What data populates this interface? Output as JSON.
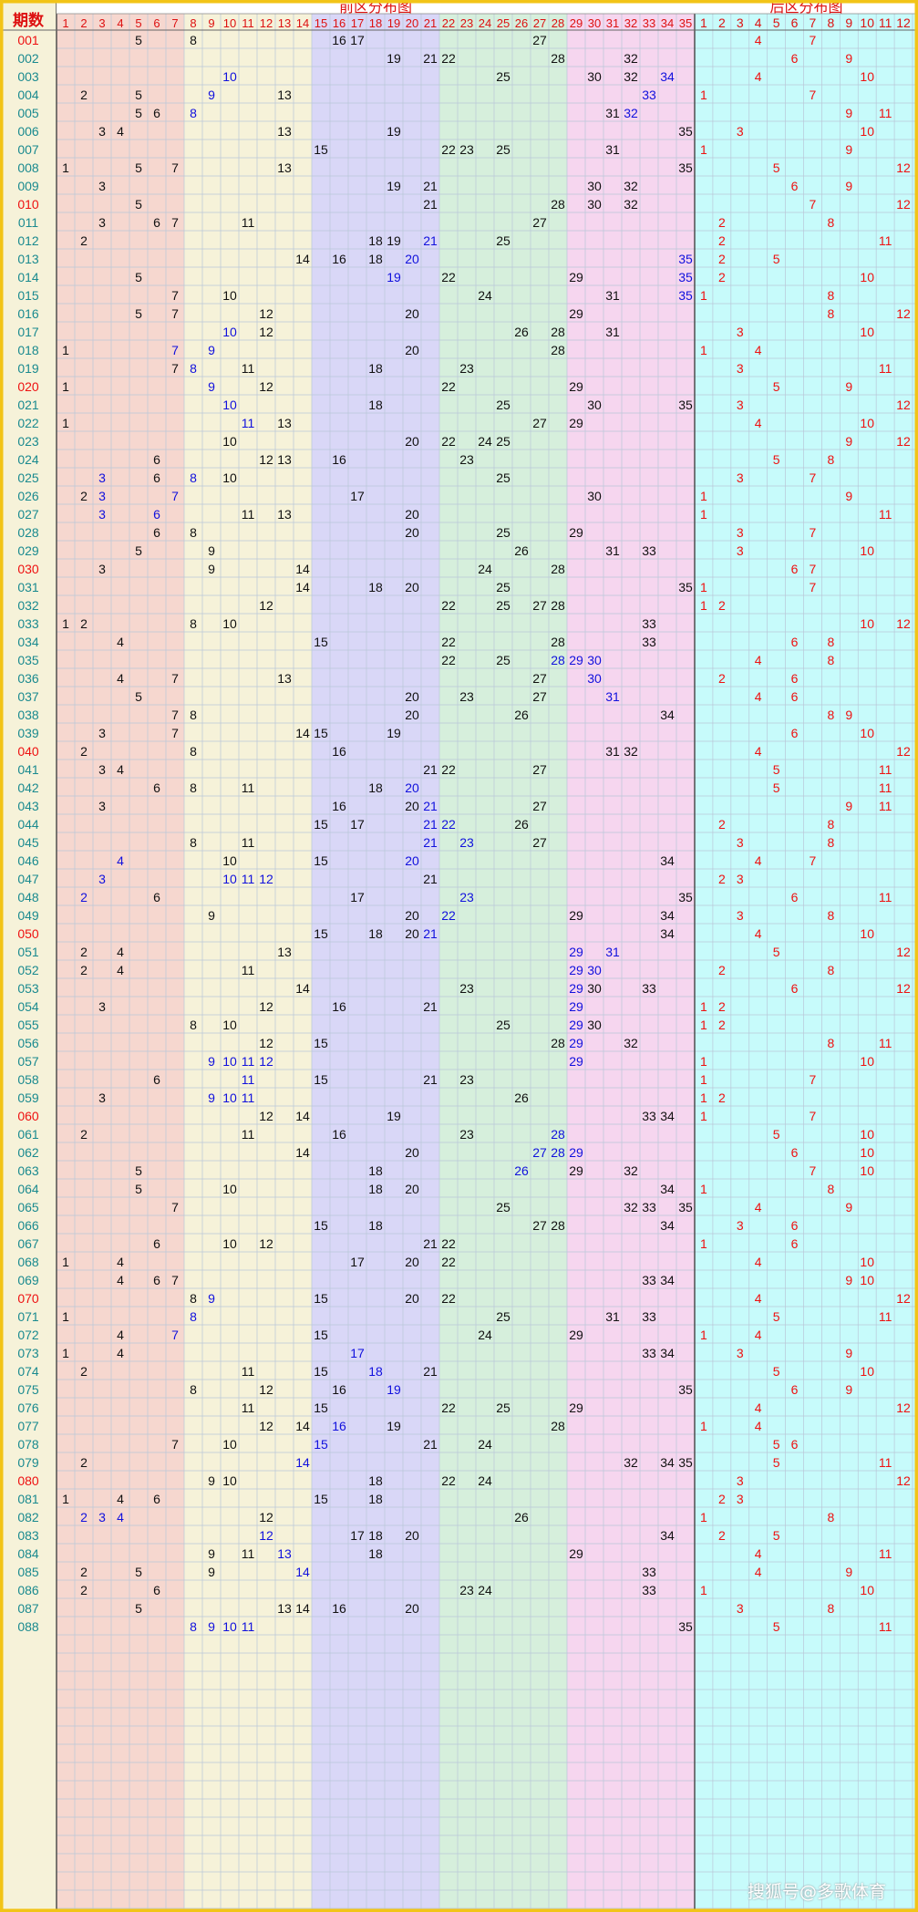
{
  "header": {
    "period_label": "期数",
    "front_title": "前区分布图",
    "back_title": "后区分布图"
  },
  "front_cols": [
    "1",
    "2",
    "3",
    "4",
    "5",
    "6",
    "7",
    "8",
    "9",
    "10",
    "11",
    "12",
    "13",
    "14",
    "15",
    "16",
    "17",
    "18",
    "19",
    "20",
    "21",
    "22",
    "23",
    "24",
    "25",
    "26",
    "27",
    "28",
    "29",
    "30",
    "31",
    "32",
    "33",
    "34",
    "35"
  ],
  "back_cols": [
    "1",
    "2",
    "3",
    "4",
    "5",
    "6",
    "7",
    "8",
    "9",
    "10",
    "11",
    "12"
  ],
  "colors": {
    "zone1": "#f6d7cf",
    "zone2": "#f6f2d9",
    "zone3": "#d9d7f7",
    "zone4": "#d6efdc",
    "zone5": "#f6d6ef",
    "back": "#c7fbfb",
    "period_bg": "#f6f2d9",
    "front_num": "#111111",
    "repeat_num": "#1111dd",
    "back_num": "#ee1111",
    "period_red": "#ee1111",
    "period_teal": "#1a8a8f",
    "title_red": "#dd1111",
    "border": "#f2c417"
  },
  "rows": [
    {
      "p": "001",
      "f": [
        5,
        8,
        16,
        17,
        27
      ],
      "b": [
        4,
        7
      ],
      "blue": []
    },
    {
      "p": "002",
      "f": [
        19,
        21,
        22,
        28,
        32
      ],
      "b": [
        6,
        9
      ],
      "blue": []
    },
    {
      "p": "003",
      "f": [
        10,
        25,
        30,
        32,
        34
      ],
      "b": [
        4,
        10
      ],
      "blue": [
        10,
        34
      ]
    },
    {
      "p": "004",
      "f": [
        2,
        5,
        9,
        13,
        33
      ],
      "b": [
        1,
        7
      ],
      "blue": [
        9,
        33
      ]
    },
    {
      "p": "005",
      "f": [
        5,
        6,
        8,
        31,
        32
      ],
      "b": [
        9,
        11
      ],
      "blue": [
        8,
        32
      ]
    },
    {
      "p": "006",
      "f": [
        3,
        4,
        13,
        19,
        35
      ],
      "b": [
        3,
        10
      ],
      "blue": []
    },
    {
      "p": "007",
      "f": [
        15,
        22,
        23,
        25,
        31
      ],
      "b": [
        1,
        9
      ],
      "blue": []
    },
    {
      "p": "008",
      "f": [
        1,
        5,
        7,
        13,
        35
      ],
      "b": [
        5,
        12
      ],
      "blue": []
    },
    {
      "p": "009",
      "f": [
        3,
        19,
        21,
        30,
        32
      ],
      "b": [
        6,
        9
      ],
      "blue": []
    },
    {
      "p": "010",
      "f": [
        5,
        21,
        28,
        30,
        32
      ],
      "b": [
        7,
        12
      ],
      "blue": []
    },
    {
      "p": "011",
      "f": [
        3,
        6,
        7,
        11,
        27
      ],
      "b": [
        2,
        8
      ],
      "blue": []
    },
    {
      "p": "012",
      "f": [
        2,
        18,
        19,
        21,
        25
      ],
      "b": [
        2,
        11
      ],
      "blue": [
        21
      ]
    },
    {
      "p": "013",
      "f": [
        14,
        16,
        18,
        20,
        35
      ],
      "b": [
        2,
        5
      ],
      "blue": [
        20,
        35
      ]
    },
    {
      "p": "014",
      "f": [
        5,
        19,
        22,
        29,
        35
      ],
      "b": [
        2,
        10
      ],
      "blue": [
        19,
        35
      ]
    },
    {
      "p": "015",
      "f": [
        7,
        10,
        24,
        31,
        35
      ],
      "b": [
        1,
        8
      ],
      "blue": [
        35
      ]
    },
    {
      "p": "016",
      "f": [
        5,
        7,
        12,
        20,
        29
      ],
      "b": [
        8,
        12
      ],
      "blue": []
    },
    {
      "p": "017",
      "f": [
        10,
        12,
        26,
        28,
        31
      ],
      "b": [
        3,
        10
      ],
      "blue": [
        10
      ]
    },
    {
      "p": "018",
      "f": [
        1,
        7,
        9,
        20,
        28
      ],
      "b": [
        1,
        4
      ],
      "blue": [
        7,
        9
      ]
    },
    {
      "p": "019",
      "f": [
        7,
        8,
        11,
        18,
        23
      ],
      "b": [
        3,
        11
      ],
      "blue": [
        8
      ]
    },
    {
      "p": "020",
      "f": [
        1,
        9,
        12,
        22,
        29
      ],
      "b": [
        5,
        9
      ],
      "blue": [
        9
      ]
    },
    {
      "p": "021",
      "f": [
        10,
        18,
        25,
        30,
        35
      ],
      "b": [
        3,
        12
      ],
      "blue": [
        10
      ]
    },
    {
      "p": "022",
      "f": [
        1,
        11,
        13,
        27,
        29
      ],
      "b": [
        4,
        10
      ],
      "blue": [
        11
      ]
    },
    {
      "p": "023",
      "f": [
        10,
        20,
        22,
        24,
        25
      ],
      "b": [
        9,
        12
      ],
      "blue": []
    },
    {
      "p": "024",
      "f": [
        6,
        12,
        13,
        16,
        23
      ],
      "b": [
        5,
        8
      ],
      "blue": []
    },
    {
      "p": "025",
      "f": [
        3,
        6,
        8,
        10,
        25
      ],
      "b": [
        3,
        7
      ],
      "blue": [
        3,
        8
      ]
    },
    {
      "p": "026",
      "f": [
        2,
        3,
        7,
        17,
        30
      ],
      "b": [
        1,
        9
      ],
      "blue": [
        3,
        7
      ]
    },
    {
      "p": "027",
      "f": [
        3,
        6,
        11,
        13,
        20
      ],
      "b": [
        1,
        11
      ],
      "blue": [
        3,
        6
      ]
    },
    {
      "p": "028",
      "f": [
        6,
        8,
        20,
        25,
        29
      ],
      "b": [
        3,
        7
      ],
      "blue": []
    },
    {
      "p": "029",
      "f": [
        5,
        9,
        26,
        31,
        33
      ],
      "b": [
        3,
        10
      ],
      "blue": []
    },
    {
      "p": "030",
      "f": [
        3,
        9,
        14,
        24,
        28
      ],
      "b": [
        6,
        7
      ],
      "blue": []
    },
    {
      "p": "031",
      "f": [
        14,
        18,
        20,
        25,
        35
      ],
      "b": [
        1,
        7
      ],
      "blue": []
    },
    {
      "p": "032",
      "f": [
        12,
        22,
        25,
        27,
        28
      ],
      "b": [
        1,
        2
      ],
      "blue": []
    },
    {
      "p": "033",
      "f": [
        1,
        2,
        8,
        10,
        33
      ],
      "b": [
        10,
        12
      ],
      "blue": []
    },
    {
      "p": "034",
      "f": [
        4,
        15,
        22,
        28,
        33
      ],
      "b": [
        6,
        8
      ],
      "blue": []
    },
    {
      "p": "035",
      "f": [
        22,
        25,
        28,
        29,
        30
      ],
      "b": [
        4,
        8
      ],
      "blue": [
        28,
        29,
        30
      ]
    },
    {
      "p": "036",
      "f": [
        4,
        7,
        13,
        27,
        30
      ],
      "b": [
        2,
        6
      ],
      "blue": [
        30
      ]
    },
    {
      "p": "037",
      "f": [
        5,
        20,
        23,
        27,
        31
      ],
      "b": [
        4,
        6
      ],
      "blue": [
        31
      ]
    },
    {
      "p": "038",
      "f": [
        7,
        8,
        20,
        26,
        34
      ],
      "b": [
        8,
        9
      ],
      "blue": []
    },
    {
      "p": "039",
      "f": [
        3,
        7,
        14,
        15,
        19
      ],
      "b": [
        6,
        10
      ],
      "blue": []
    },
    {
      "p": "040",
      "f": [
        2,
        8,
        16,
        31,
        32
      ],
      "b": [
        4,
        12
      ],
      "blue": []
    },
    {
      "p": "041",
      "f": [
        3,
        4,
        21,
        22,
        27
      ],
      "b": [
        5,
        11
      ],
      "blue": []
    },
    {
      "p": "042",
      "f": [
        6,
        8,
        11,
        18,
        20
      ],
      "b": [
        5,
        11
      ],
      "blue": [
        20
      ]
    },
    {
      "p": "043",
      "f": [
        3,
        16,
        20,
        21,
        27
      ],
      "b": [
        9,
        11
      ],
      "blue": [
        21
      ]
    },
    {
      "p": "044",
      "f": [
        15,
        17,
        21,
        22,
        26
      ],
      "b": [
        2,
        8
      ],
      "blue": [
        21,
        22
      ]
    },
    {
      "p": "045",
      "f": [
        8,
        11,
        21,
        23,
        27
      ],
      "b": [
        3,
        8
      ],
      "blue": [
        21,
        23
      ]
    },
    {
      "p": "046",
      "f": [
        4,
        10,
        15,
        20,
        34
      ],
      "b": [
        4,
        7
      ],
      "blue": [
        4,
        20
      ]
    },
    {
      "p": "047",
      "f": [
        3,
        10,
        11,
        12,
        21
      ],
      "b": [
        2,
        3
      ],
      "blue": [
        3,
        10,
        11,
        12
      ]
    },
    {
      "p": "048",
      "f": [
        2,
        6,
        17,
        23,
        35
      ],
      "b": [
        6,
        11
      ],
      "blue": [
        2,
        23
      ]
    },
    {
      "p": "049",
      "f": [
        9,
        20,
        22,
        29,
        34
      ],
      "b": [
        3,
        8
      ],
      "blue": [
        22
      ]
    },
    {
      "p": "050",
      "f": [
        15,
        18,
        20,
        21,
        34
      ],
      "b": [
        4,
        10
      ],
      "blue": [
        21
      ]
    },
    {
      "p": "051",
      "f": [
        2,
        4,
        13,
        29,
        31
      ],
      "b": [
        5,
        12
      ],
      "blue": [
        29,
        31
      ]
    },
    {
      "p": "052",
      "f": [
        2,
        4,
        11,
        29,
        30
      ],
      "b": [
        2,
        8
      ],
      "blue": [
        29,
        30
      ]
    },
    {
      "p": "053",
      "f": [
        14,
        23,
        29,
        30,
        33
      ],
      "b": [
        6,
        12
      ],
      "blue": [
        29
      ]
    },
    {
      "p": "054",
      "f": [
        3,
        12,
        16,
        21,
        29
      ],
      "b": [
        1,
        2
      ],
      "blue": [
        29
      ]
    },
    {
      "p": "055",
      "f": [
        8,
        10,
        25,
        29,
        30
      ],
      "b": [
        1,
        2
      ],
      "blue": [
        29
      ]
    },
    {
      "p": "056",
      "f": [
        12,
        15,
        28,
        29,
        32
      ],
      "b": [
        8,
        11
      ],
      "blue": [
        29
      ]
    },
    {
      "p": "057",
      "f": [
        9,
        10,
        11,
        12,
        29
      ],
      "b": [
        1,
        10
      ],
      "blue": [
        9,
        10,
        11,
        12,
        29
      ]
    },
    {
      "p": "058",
      "f": [
        6,
        11,
        15,
        21,
        23
      ],
      "b": [
        1,
        7
      ],
      "blue": [
        11
      ]
    },
    {
      "p": "059",
      "f": [
        3,
        9,
        10,
        11,
        26
      ],
      "b": [
        1,
        2
      ],
      "blue": [
        9,
        10,
        11
      ]
    },
    {
      "p": "060",
      "f": [
        12,
        14,
        19,
        33,
        34
      ],
      "b": [
        1,
        7
      ],
      "blue": []
    },
    {
      "p": "061",
      "f": [
        2,
        11,
        16,
        23,
        28
      ],
      "b": [
        5,
        10
      ],
      "blue": [
        28
      ]
    },
    {
      "p": "062",
      "f": [
        14,
        20,
        27,
        28,
        29
      ],
      "b": [
        6,
        10
      ],
      "blue": [
        27,
        28,
        29
      ]
    },
    {
      "p": "063",
      "f": [
        5,
        18,
        26,
        29,
        32
      ],
      "b": [
        7,
        10
      ],
      "blue": [
        26
      ]
    },
    {
      "p": "064",
      "f": [
        5,
        10,
        18,
        20,
        34
      ],
      "b": [
        1,
        8
      ],
      "blue": []
    },
    {
      "p": "065",
      "f": [
        7,
        25,
        32,
        33,
        35
      ],
      "b": [
        4,
        9
      ],
      "blue": []
    },
    {
      "p": "066",
      "f": [
        15,
        18,
        27,
        28,
        34
      ],
      "b": [
        3,
        6
      ],
      "blue": []
    },
    {
      "p": "067",
      "f": [
        6,
        10,
        12,
        21,
        22
      ],
      "b": [
        1,
        6
      ],
      "blue": []
    },
    {
      "p": "068",
      "f": [
        1,
        4,
        17,
        20,
        22
      ],
      "b": [
        4,
        10
      ],
      "blue": []
    },
    {
      "p": "069",
      "f": [
        4,
        6,
        7,
        33,
        34
      ],
      "b": [
        9,
        10
      ],
      "blue": []
    },
    {
      "p": "070",
      "f": [
        8,
        9,
        15,
        20,
        22
      ],
      "b": [
        4,
        12
      ],
      "blue": [
        9
      ]
    },
    {
      "p": "071",
      "f": [
        1,
        8,
        25,
        31,
        33
      ],
      "b": [
        5,
        11
      ],
      "blue": [
        8
      ]
    },
    {
      "p": "072",
      "f": [
        4,
        7,
        15,
        24,
        29
      ],
      "b": [
        1,
        4
      ],
      "blue": [
        7
      ]
    },
    {
      "p": "073",
      "f": [
        1,
        4,
        17,
        33,
        34
      ],
      "b": [
        3,
        9
      ],
      "blue": [
        17
      ]
    },
    {
      "p": "074",
      "f": [
        2,
        11,
        15,
        18,
        21
      ],
      "b": [
        5,
        10
      ],
      "blue": [
        18
      ]
    },
    {
      "p": "075",
      "f": [
        8,
        12,
        16,
        19,
        35
      ],
      "b": [
        6,
        9
      ],
      "blue": [
        19
      ]
    },
    {
      "p": "076",
      "f": [
        11,
        15,
        22,
        25,
        29
      ],
      "b": [
        4,
        12
      ],
      "blue": []
    },
    {
      "p": "077",
      "f": [
        12,
        14,
        16,
        19,
        28
      ],
      "b": [
        1,
        4
      ],
      "blue": [
        16
      ]
    },
    {
      "p": "078",
      "f": [
        7,
        10,
        15,
        21,
        24
      ],
      "b": [
        5,
        6
      ],
      "blue": [
        15
      ]
    },
    {
      "p": "079",
      "f": [
        2,
        14,
        32,
        34,
        35
      ],
      "b": [
        5,
        11
      ],
      "blue": [
        14
      ]
    },
    {
      "p": "080",
      "f": [
        9,
        10,
        18,
        22,
        24
      ],
      "b": [
        3,
        12
      ],
      "blue": []
    },
    {
      "p": "081",
      "f": [
        1,
        4,
        6,
        15,
        18
      ],
      "b": [
        2,
        3
      ],
      "blue": []
    },
    {
      "p": "082",
      "f": [
        2,
        3,
        4,
        12,
        26
      ],
      "b": [
        1,
        8
      ],
      "blue": [
        2,
        3,
        4
      ]
    },
    {
      "p": "083",
      "f": [
        12,
        17,
        18,
        20,
        34
      ],
      "b": [
        2,
        5
      ],
      "blue": [
        12
      ]
    },
    {
      "p": "084",
      "f": [
        9,
        11,
        13,
        18,
        29
      ],
      "b": [
        4,
        11
      ],
      "blue": [
        13
      ]
    },
    {
      "p": "085",
      "f": [
        2,
        5,
        9,
        14,
        33
      ],
      "b": [
        4,
        9
      ],
      "blue": [
        14
      ]
    },
    {
      "p": "086",
      "f": [
        2,
        6,
        23,
        24,
        33
      ],
      "b": [
        1,
        10
      ],
      "blue": []
    },
    {
      "p": "087",
      "f": [
        5,
        13,
        14,
        16,
        20
      ],
      "b": [
        3,
        8
      ],
      "blue": []
    },
    {
      "p": "088",
      "f": [
        8,
        9,
        10,
        11,
        35
      ],
      "b": [
        5,
        11
      ],
      "blue": [
        8,
        9,
        10,
        11
      ]
    }
  ],
  "red_periods": [
    "001",
    "010",
    "020",
    "030",
    "040",
    "050",
    "060",
    "070",
    "080"
  ],
  "watermark": "搜狐号@多歌体育"
}
